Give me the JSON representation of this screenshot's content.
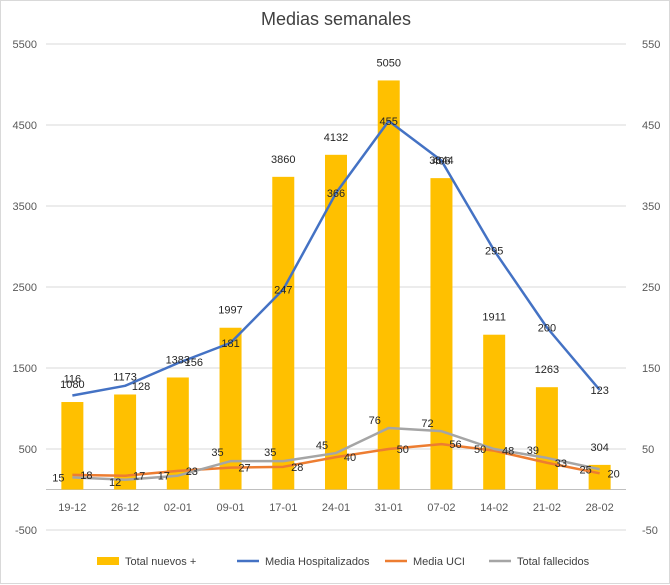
{
  "chart_data": {
    "type": "bar",
    "title": "Medias semanales",
    "categories": [
      "19-12",
      "26-12",
      "02-01",
      "09-01",
      "17-01",
      "24-01",
      "31-01",
      "07-02",
      "14-02",
      "21-02",
      "28-02"
    ],
    "y_left": {
      "min": -500,
      "max": 5500,
      "ticks": [
        -500,
        500,
        1500,
        2500,
        3500,
        4500,
        5500
      ]
    },
    "y_right": {
      "min": -50,
      "max": 550,
      "ticks": [
        -50,
        50,
        150,
        250,
        350,
        450,
        550
      ]
    },
    "grid": true,
    "legend_position": "bottom",
    "series": [
      {
        "name": "Total nuevos +",
        "type": "bar",
        "axis": "left",
        "color": "#FFC000",
        "values": [
          1080,
          1173,
          1383,
          1997,
          3860,
          4132,
          5050,
          3844,
          1911,
          1263,
          304
        ]
      },
      {
        "name": "Media Hospitalizados",
        "type": "line",
        "axis": "right",
        "color": "#4472C4",
        "values": [
          116,
          128,
          156,
          181,
          247,
          366,
          455,
          406,
          295,
          200,
          123
        ]
      },
      {
        "name": "Media UCI",
        "type": "line",
        "axis": "right",
        "color": "#ED7D31",
        "values": [
          18,
          17,
          23,
          27,
          28,
          40,
          50,
          56,
          48,
          33,
          20
        ]
      },
      {
        "name": "Total fallecidos",
        "type": "line",
        "axis": "right",
        "color": "#A5A5A5",
        "values": [
          15,
          12,
          17,
          35,
          35,
          45,
          76,
          72,
          50,
          39,
          25
        ]
      }
    ]
  }
}
